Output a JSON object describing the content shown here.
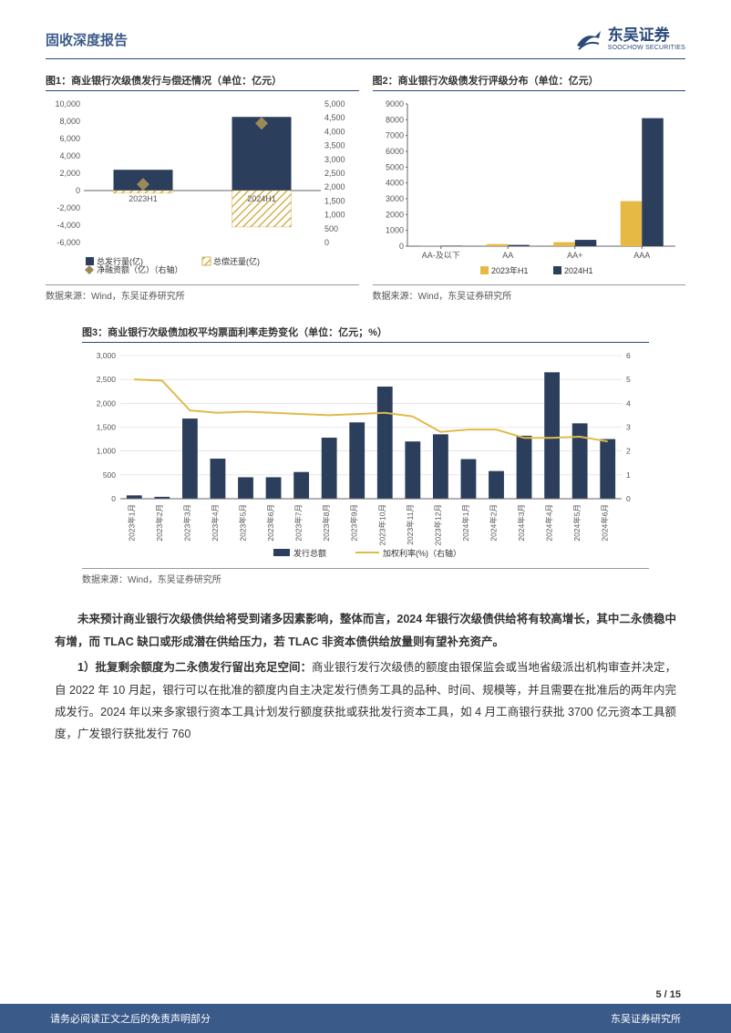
{
  "header": {
    "report_title": "固收深度报告",
    "company_cn": "东吴证券",
    "company_en": "SOOCHOW SECURITIES"
  },
  "chart1": {
    "title": "图1：商业银行次级债发行与偿还情况（单位：亿元）",
    "type": "bar_combo",
    "categories": [
      "2023H1",
      "2024H1"
    ],
    "issue_values": [
      2400,
      8500
    ],
    "repay_values": [
      -300,
      -4200
    ],
    "net_values": [
      2100,
      4300
    ],
    "left_ylim": [
      -6000,
      10000
    ],
    "left_ytick_step": 2000,
    "right_ylim": [
      0,
      5000
    ],
    "right_ytick_step": 500,
    "colors": {
      "issue": "#2b3e5c",
      "repay_pattern": "#d4b050",
      "net_marker": "#9a8a5a",
      "grid": "#d0d0d0",
      "axis": "#666666"
    },
    "legend": {
      "issue": "总发行量(亿)",
      "repay": "总偿还量(亿)",
      "net": "净融资额（亿）（右轴）"
    },
    "bar_width": 0.5,
    "marker_size": 7,
    "label_fontsize": 9,
    "source": "数据来源：Wind，东吴证券研究所"
  },
  "chart2": {
    "title": "图2：商业银行次级债发行评级分布（单位：亿元）",
    "type": "grouped_bar",
    "categories": [
      "AA-及以下",
      "AA",
      "AA+",
      "AAA"
    ],
    "series_2023": [
      10,
      130,
      250,
      2850
    ],
    "series_2024": [
      30,
      80,
      400,
      8100
    ],
    "ylim": [
      0,
      9000
    ],
    "ytick_step": 1000,
    "colors": {
      "s2023": "#e6b844",
      "s2024": "#2b3e5c",
      "axis": "#666666"
    },
    "legend": {
      "s2023": "2023年H1",
      "s2024": "2024H1"
    },
    "bar_width": 0.32,
    "label_fontsize": 9,
    "source": "数据来源：Wind，东吴证券研究所"
  },
  "chart3": {
    "title": "图3：商业银行次级债加权平均票面利率走势变化（单位：亿元；%）",
    "type": "bar_line",
    "categories": [
      "2023年1月",
      "2023年2月",
      "2023年3月",
      "2023年4月",
      "2023年5月",
      "2023年6月",
      "2023年7月",
      "2023年8月",
      "2023年9月",
      "2023年10月",
      "2023年11月",
      "2023年12月",
      "2024年1月",
      "2024年2月",
      "2024年3月",
      "2024年4月",
      "2024年5月",
      "2024年6月"
    ],
    "issue_total": [
      70,
      40,
      1680,
      840,
      450,
      450,
      560,
      1280,
      1600,
      2350,
      1200,
      1350,
      830,
      580,
      1320,
      2650,
      1580,
      1250
    ],
    "weighted_rate": [
      5.0,
      4.95,
      3.7,
      3.6,
      3.65,
      3.6,
      3.55,
      3.5,
      3.55,
      3.6,
      3.45,
      2.8,
      2.9,
      2.9,
      2.55,
      2.55,
      2.6,
      2.4
    ],
    "left_ylim": [
      0,
      3000
    ],
    "left_ytick_step": 500,
    "right_ylim": [
      0,
      6
    ],
    "right_ytick_step": 1,
    "colors": {
      "bar": "#2b3e5c",
      "line": "#e0bb4a",
      "grid": "#d8d8d8",
      "axis": "#666666"
    },
    "legend": {
      "bar": "发行总额",
      "line": "加权利率(%)（右轴）"
    },
    "bar_width": 0.55,
    "line_width": 2,
    "label_fontsize": 8.5,
    "source": "数据来源：Wind，东吴证券研究所"
  },
  "body": {
    "p1": "未来预计商业银行次级债供给将受到诸多因素影响，整体而言，2024 年银行次级债供给将有较高增长，其中二永债稳中有增，而 TLAC 缺口或形成潜在供给压力，若 TLAC 非资本债供给放量则有望补充资产。",
    "item1_label": "1）批复剩余额度为二永债发行留出充足空间：",
    "item1_text": "商业银行发行次级债的额度由银保监会或当地省级派出机构审查并决定，自 2022 年 10 月起，银行可以在批准的额度内自主决定发行债务工具的品种、时间、规模等，并且需要在批准后的两年内完成发行。2024 年以来多家银行资本工具计划发行额度获批或获批发行资本工具，如 4 月工商银行获批 3700 亿元资本工具额度，广发银行获批发行 760"
  },
  "footer": {
    "page": "5 / 15",
    "disclaimer": "请务必阅读正文之后的免责声明部分",
    "institute": "东吴证券研究所"
  }
}
